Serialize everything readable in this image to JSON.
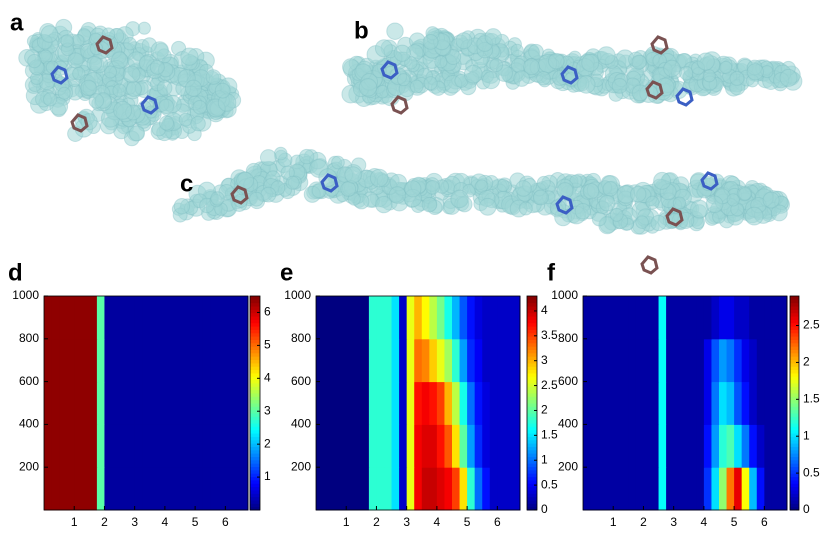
{
  "figure": {
    "labels": [
      "a",
      "b",
      "c"
    ]
  },
  "chart_data": [
    {
      "type": "heatmap",
      "label": "d",
      "xlim": [
        0,
        6.75
      ],
      "ylim": [
        0,
        1000
      ],
      "xticks": [
        1,
        2,
        3,
        4,
        5,
        6
      ],
      "yticks": [
        200,
        400,
        600,
        800,
        1000
      ],
      "clim": [
        0,
        6.5
      ],
      "cticks": [
        1,
        2,
        3,
        4,
        5,
        6
      ],
      "rows": [
        [
          6.4,
          6.4,
          6.4,
          6.4,
          6.4,
          6.4,
          6.4,
          3.0,
          0.2,
          0.2,
          0.2,
          0.2,
          0.2,
          0.2,
          0.2,
          0.2,
          0.2,
          0.2,
          0.2,
          0.2,
          0.2,
          0.2,
          0.2,
          0.2,
          0.2,
          0.2,
          0.2
        ],
        [
          6.4,
          6.4,
          6.4,
          6.4,
          6.4,
          6.4,
          6.4,
          3.0,
          0.2,
          0.2,
          0.2,
          0.2,
          0.2,
          0.2,
          0.2,
          0.2,
          0.2,
          0.2,
          0.2,
          0.2,
          0.2,
          0.2,
          0.2,
          0.2,
          0.2,
          0.2,
          0.2
        ],
        [
          6.4,
          6.4,
          6.4,
          6.4,
          6.4,
          6.4,
          6.4,
          3.0,
          0.2,
          0.2,
          0.2,
          0.2,
          0.2,
          0.2,
          0.2,
          0.2,
          0.2,
          0.2,
          0.2,
          0.2,
          0.2,
          0.2,
          0.2,
          0.2,
          0.2,
          0.2,
          0.2
        ],
        [
          6.4,
          6.4,
          6.4,
          6.4,
          6.4,
          6.4,
          6.4,
          3.0,
          0.2,
          0.2,
          0.2,
          0.2,
          0.2,
          0.2,
          0.2,
          0.2,
          0.2,
          0.2,
          0.2,
          0.2,
          0.2,
          0.2,
          0.2,
          0.2,
          0.2,
          0.2,
          0.2
        ],
        [
          6.4,
          6.4,
          6.4,
          6.4,
          6.4,
          6.4,
          6.4,
          3.0,
          0.2,
          0.2,
          0.2,
          0.2,
          0.2,
          0.2,
          0.2,
          0.2,
          0.2,
          0.2,
          0.2,
          0.2,
          0.2,
          0.2,
          0.2,
          0.2,
          0.2,
          0.2,
          0.2
        ]
      ]
    },
    {
      "type": "heatmap",
      "label": "e",
      "xlim": [
        0,
        6.75
      ],
      "ylim": [
        0,
        1000
      ],
      "xticks": [
        1,
        2,
        3,
        4,
        5,
        6
      ],
      "yticks": [
        200,
        400,
        600,
        800,
        1000
      ],
      "clim": [
        0,
        4.3
      ],
      "cticks": [
        0,
        0.5,
        1,
        1.5,
        2,
        2.5,
        3,
        3.5,
        4
      ],
      "rows": [
        [
          0,
          0,
          0,
          0,
          0,
          0,
          0,
          1.8,
          1.8,
          1.8,
          1.5,
          0.3,
          2.6,
          3.8,
          4.0,
          4.0,
          3.9,
          3.8,
          3.5,
          2.8,
          1.8,
          1.0,
          0.6,
          0.3,
          0.3,
          0.3,
          0.3
        ],
        [
          0,
          0,
          0,
          0,
          0,
          0,
          0,
          1.8,
          1.8,
          1.8,
          1.5,
          0.3,
          2.6,
          3.8,
          3.9,
          3.9,
          3.7,
          3.4,
          2.8,
          2.0,
          1.2,
          0.7,
          0.4,
          0.3,
          0.3,
          0.3,
          0.3
        ],
        [
          0,
          0,
          0,
          0,
          0,
          0,
          0,
          1.8,
          1.8,
          1.8,
          1.5,
          0.3,
          2.6,
          3.7,
          3.8,
          3.7,
          3.5,
          3.0,
          2.4,
          1.7,
          1.0,
          0.6,
          0.4,
          0.3,
          0.3,
          0.3,
          0.3
        ],
        [
          0,
          0,
          0,
          0,
          0,
          0,
          0,
          1.8,
          1.8,
          1.8,
          1.5,
          0.3,
          2.6,
          3.3,
          3.2,
          2.9,
          2.6,
          2.3,
          1.8,
          1.2,
          0.7,
          0.5,
          0.3,
          0.3,
          0.3,
          0.3,
          0.3
        ],
        [
          0,
          0,
          0,
          0,
          0,
          0,
          0,
          1.8,
          1.8,
          1.8,
          1.5,
          0.3,
          2.6,
          3.0,
          2.7,
          2.4,
          2.1,
          1.7,
          1.3,
          0.9,
          0.6,
          0.4,
          0.3,
          0.3,
          0.3,
          0.3,
          0.3
        ]
      ]
    },
    {
      "type": "heatmap",
      "label": "f",
      "xlim": [
        0,
        6.75
      ],
      "ylim": [
        0,
        1000
      ],
      "xticks": [
        1,
        2,
        3,
        4,
        5,
        6
      ],
      "yticks": [
        200,
        400,
        600,
        800,
        1000
      ],
      "clim": [
        0,
        2.9
      ],
      "cticks": [
        0,
        0.5,
        1,
        1.5,
        2,
        2.5
      ],
      "rows": [
        [
          0.1,
          0.1,
          0.1,
          0.1,
          0.1,
          0.1,
          0.1,
          0.1,
          0.1,
          0.1,
          1.1,
          0.1,
          0.1,
          0.1,
          0.1,
          0.1,
          0.5,
          1.0,
          1.5,
          2.2,
          2.6,
          1.8,
          0.9,
          0.4,
          0.1,
          0.1,
          0.1
        ],
        [
          0.1,
          0.1,
          0.1,
          0.1,
          0.1,
          0.1,
          0.1,
          0.1,
          0.1,
          0.1,
          1.1,
          0.1,
          0.1,
          0.1,
          0.1,
          0.1,
          0.4,
          0.8,
          1.2,
          1.3,
          1.0,
          0.7,
          0.4,
          0.2,
          0.1,
          0.1,
          0.1
        ],
        [
          0.1,
          0.1,
          0.1,
          0.1,
          0.1,
          0.1,
          0.1,
          0.1,
          0.1,
          0.1,
          1.1,
          0.1,
          0.1,
          0.1,
          0.1,
          0.1,
          0.3,
          0.7,
          1.0,
          0.9,
          0.6,
          0.4,
          0.2,
          0.1,
          0.1,
          0.1,
          0.1
        ],
        [
          0.1,
          0.1,
          0.1,
          0.1,
          0.1,
          0.1,
          0.1,
          0.1,
          0.1,
          0.1,
          1.1,
          0.1,
          0.1,
          0.1,
          0.1,
          0.1,
          0.3,
          0.6,
          0.8,
          0.7,
          0.5,
          0.3,
          0.2,
          0.1,
          0.1,
          0.1,
          0.1
        ],
        [
          0.1,
          0.1,
          0.1,
          0.1,
          0.1,
          0.1,
          0.1,
          0.1,
          0.1,
          0.1,
          1.1,
          0.1,
          0.1,
          0.1,
          0.1,
          0.1,
          0.1,
          0.2,
          0.3,
          0.3,
          0.2,
          0.2,
          0.1,
          0.1,
          0.1,
          0.1,
          0.1
        ]
      ]
    }
  ]
}
